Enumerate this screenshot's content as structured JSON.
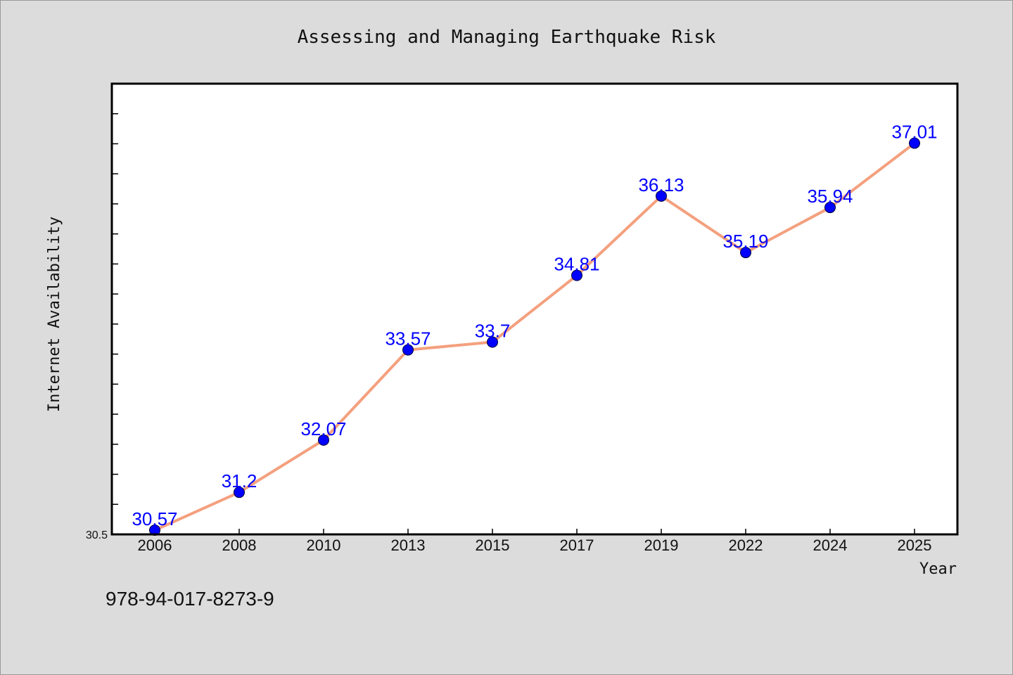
{
  "chart_data": {
    "type": "line",
    "title": "Assessing and Managing Earthquake Risk",
    "xlabel": "Year",
    "ylabel": "Internet Availability",
    "categories": [
      "2006",
      "2008",
      "2010",
      "2013",
      "2015",
      "2017",
      "2019",
      "2022",
      "2024",
      "2025"
    ],
    "series": [
      {
        "values": [
          30.57,
          31.2,
          32.07,
          33.57,
          33.7,
          34.81,
          36.13,
          35.19,
          35.94,
          37.01
        ]
      }
    ],
    "data_labels": [
      "30.57",
      "31.2",
      "32.07",
      "33.57",
      "33.7",
      "34.81",
      "36.13",
      "35.19",
      "35.94",
      "37.01"
    ],
    "y_tick_label": "30.5",
    "ylim": [
      30.5,
      38.0
    ],
    "grid": false,
    "legend": "none",
    "colors": {
      "line": "#f4a07e",
      "marker": "#0000ff",
      "data_label": "#0000ff",
      "plot_background": "#ffffff",
      "page_background": "#dcdcdc"
    }
  },
  "footer": {
    "isbn": "978-94-017-8273-9"
  }
}
